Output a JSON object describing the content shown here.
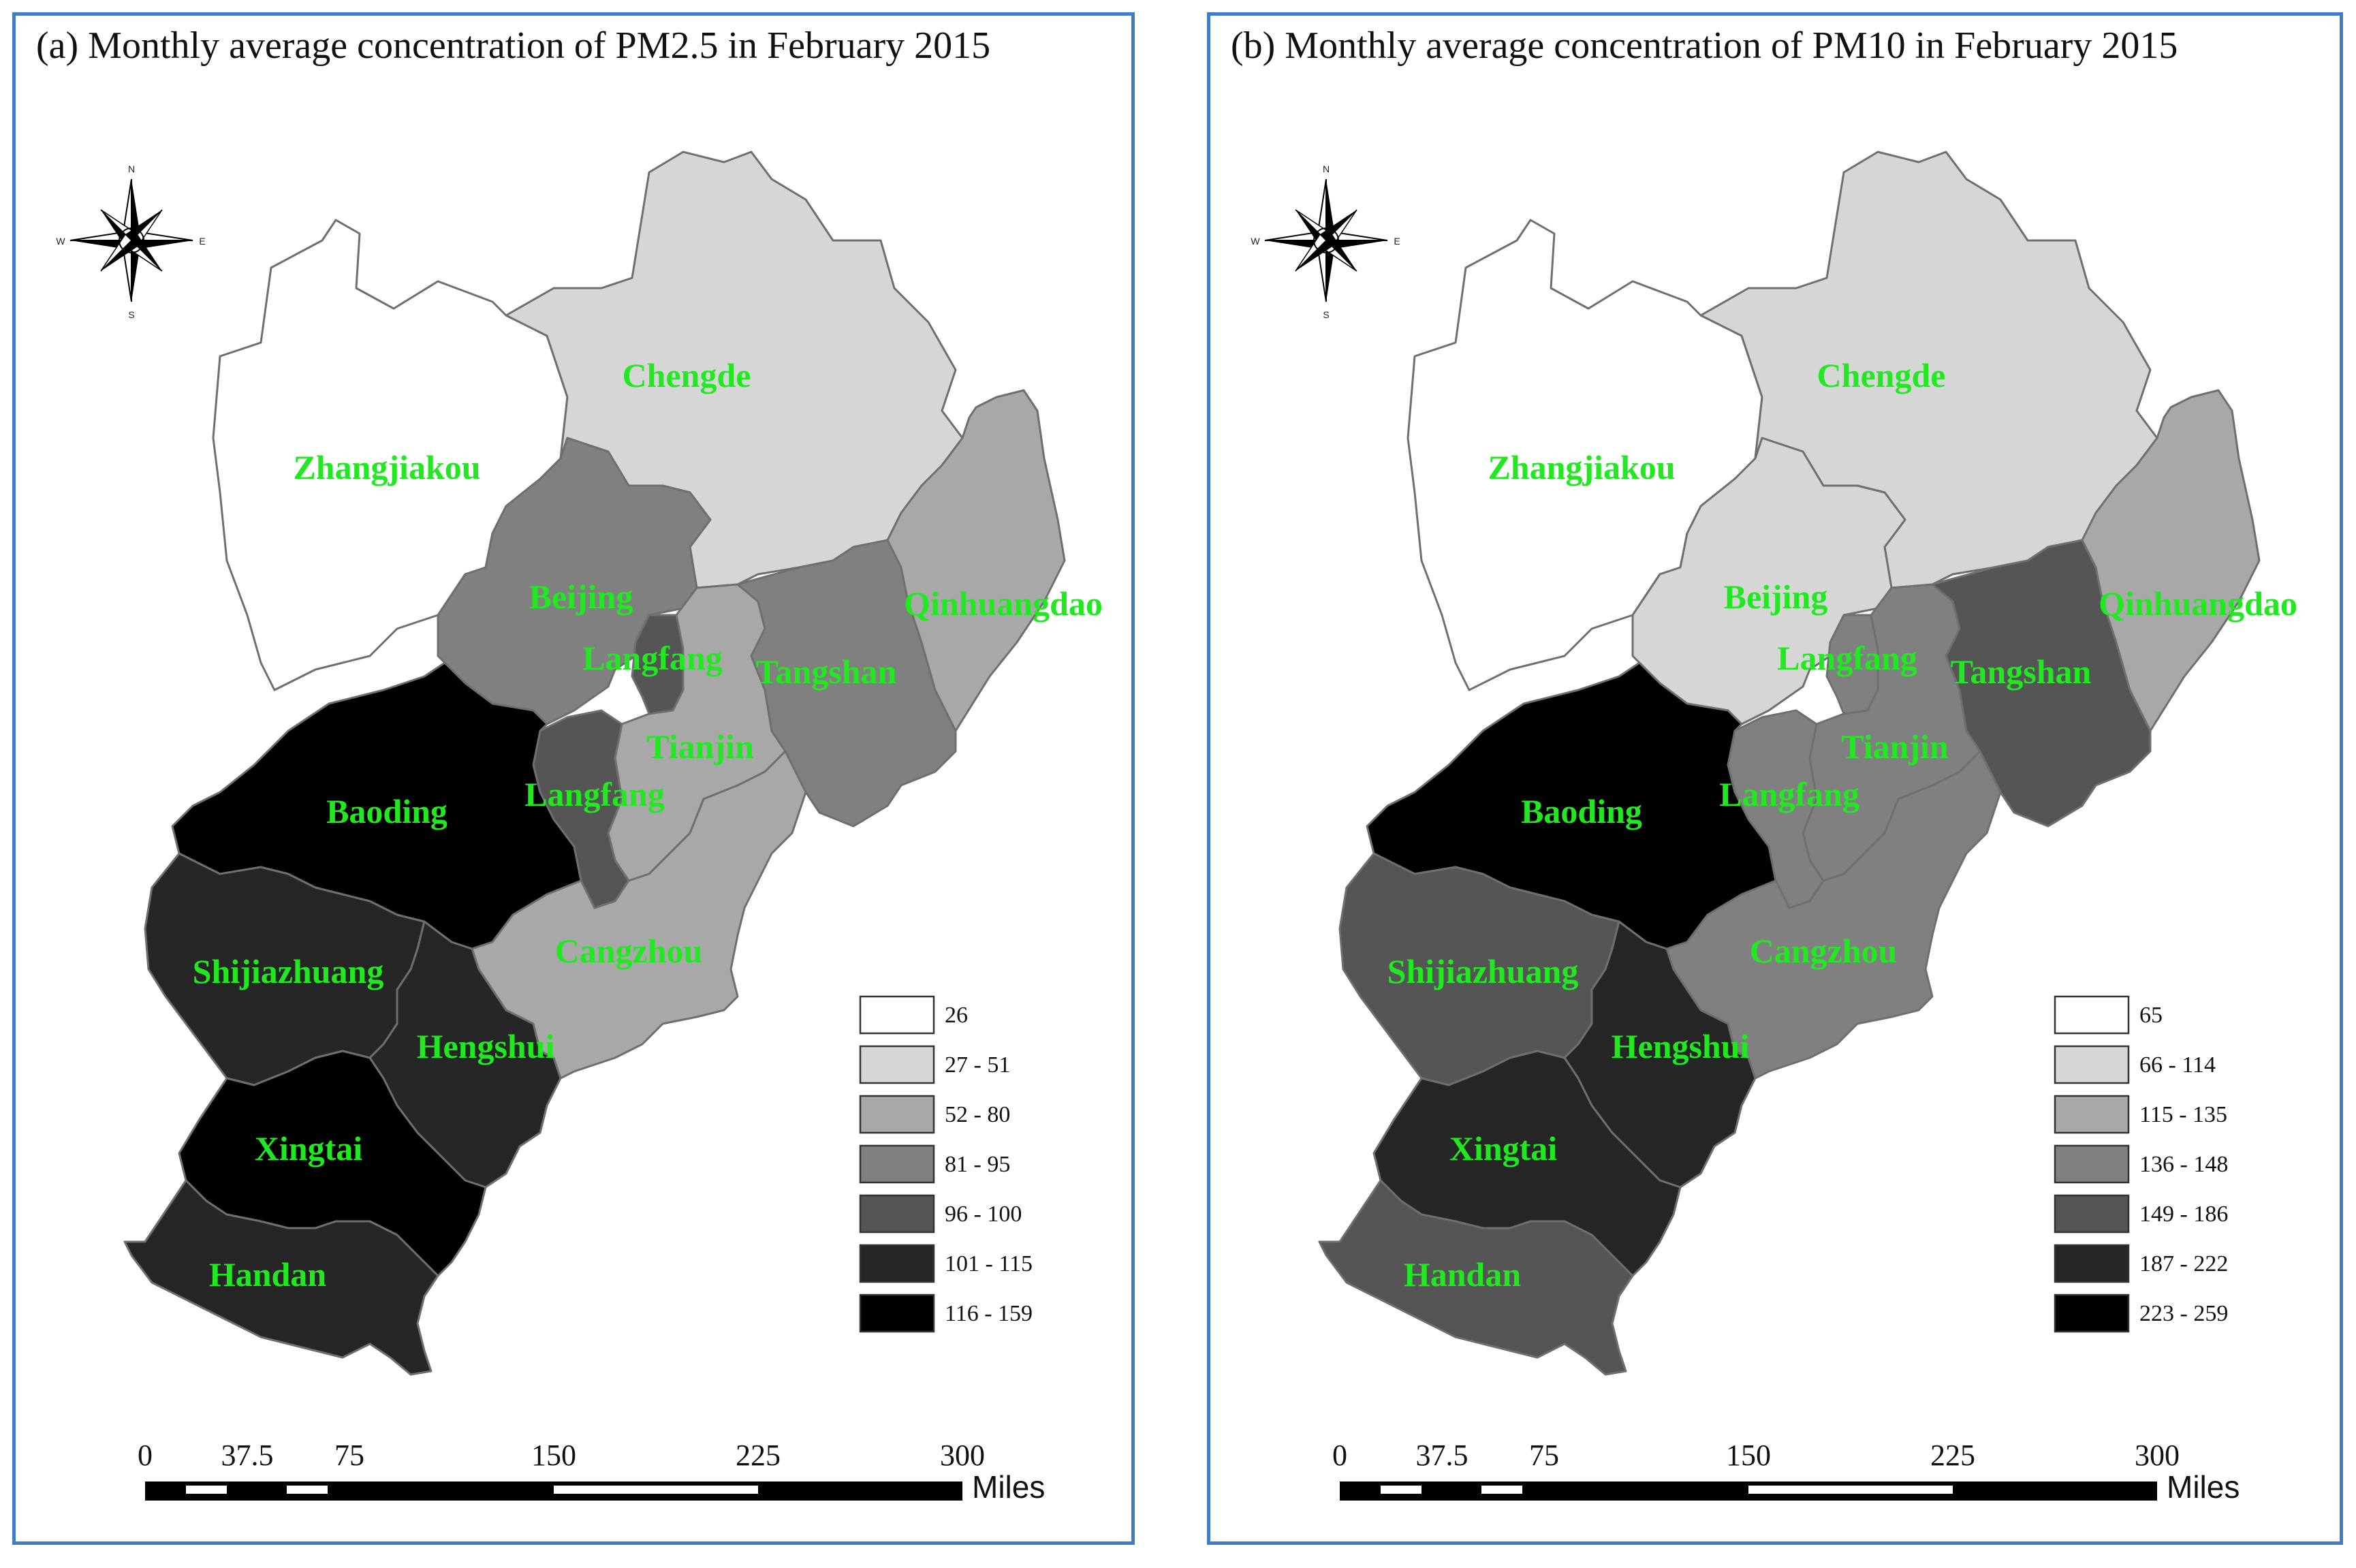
{
  "panels": [
    {
      "id": "a",
      "title": "(a) Monthly average concentration of PM2.5 in February 2015",
      "legend": [
        {
          "label": "26",
          "color": "#ffffff"
        },
        {
          "label": "27 - 51",
          "color": "#d6d6d6"
        },
        {
          "label": "52 - 80",
          "color": "#a8a8a8"
        },
        {
          "label": "81 - 95",
          "color": "#808080"
        },
        {
          "label": "96 - 100",
          "color": "#555555"
        },
        {
          "label": "101 - 115",
          "color": "#262626"
        },
        {
          "label": "116 - 159",
          "color": "#000000"
        }
      ],
      "regions": [
        {
          "name": "Zhangjiakou",
          "class": 0
        },
        {
          "name": "Chengde",
          "class": 1
        },
        {
          "name": "Beijing",
          "class": 3
        },
        {
          "name": "Langfang",
          "class": 4
        },
        {
          "name": "Tianjin",
          "class": 2
        },
        {
          "name": "Tangshan",
          "class": 3
        },
        {
          "name": "Qinhuangdao",
          "class": 2
        },
        {
          "name": "Langfang",
          "class": 4
        },
        {
          "name": "Baoding",
          "class": 6
        },
        {
          "name": "Cangzhou",
          "class": 2
        },
        {
          "name": "Shijiazhuang",
          "class": 5
        },
        {
          "name": "Hengshui",
          "class": 5
        },
        {
          "name": "Xingtai",
          "class": 6
        },
        {
          "name": "Handan",
          "class": 5
        }
      ],
      "scale": {
        "ticks": [
          "0",
          "37.5",
          "75",
          "150",
          "225",
          "300"
        ],
        "unit": "Miles"
      }
    },
    {
      "id": "b",
      "title": "(b) Monthly average concentration of PM10 in February 2015",
      "legend": [
        {
          "label": "65",
          "color": "#ffffff"
        },
        {
          "label": "66 - 114",
          "color": "#d6d6d6"
        },
        {
          "label": "115 - 135",
          "color": "#a8a8a8"
        },
        {
          "label": "136 - 148",
          "color": "#808080"
        },
        {
          "label": "149 - 186",
          "color": "#555555"
        },
        {
          "label": "187 - 222",
          "color": "#262626"
        },
        {
          "label": "223 - 259",
          "color": "#000000"
        }
      ],
      "regions": [
        {
          "name": "Zhangjiakou",
          "class": 0
        },
        {
          "name": "Chengde",
          "class": 1
        },
        {
          "name": "Beijing",
          "class": 1
        },
        {
          "name": "Langfang",
          "class": 3
        },
        {
          "name": "Tianjin",
          "class": 3
        },
        {
          "name": "Tangshan",
          "class": 4
        },
        {
          "name": "Qinhuangdao",
          "class": 2
        },
        {
          "name": "Langfang",
          "class": 3
        },
        {
          "name": "Baoding",
          "class": 6
        },
        {
          "name": "Cangzhou",
          "class": 3
        },
        {
          "name": "Shijiazhuang",
          "class": 4
        },
        {
          "name": "Hengshui",
          "class": 5
        },
        {
          "name": "Xingtai",
          "class": 5
        },
        {
          "name": "Handan",
          "class": 4
        }
      ],
      "scale": {
        "ticks": [
          "0",
          "37.5",
          "75",
          "150",
          "225",
          "300"
        ],
        "unit": "Miles"
      }
    }
  ],
  "compass": {
    "n": "N",
    "s": "S",
    "e": "E",
    "w": "W"
  }
}
